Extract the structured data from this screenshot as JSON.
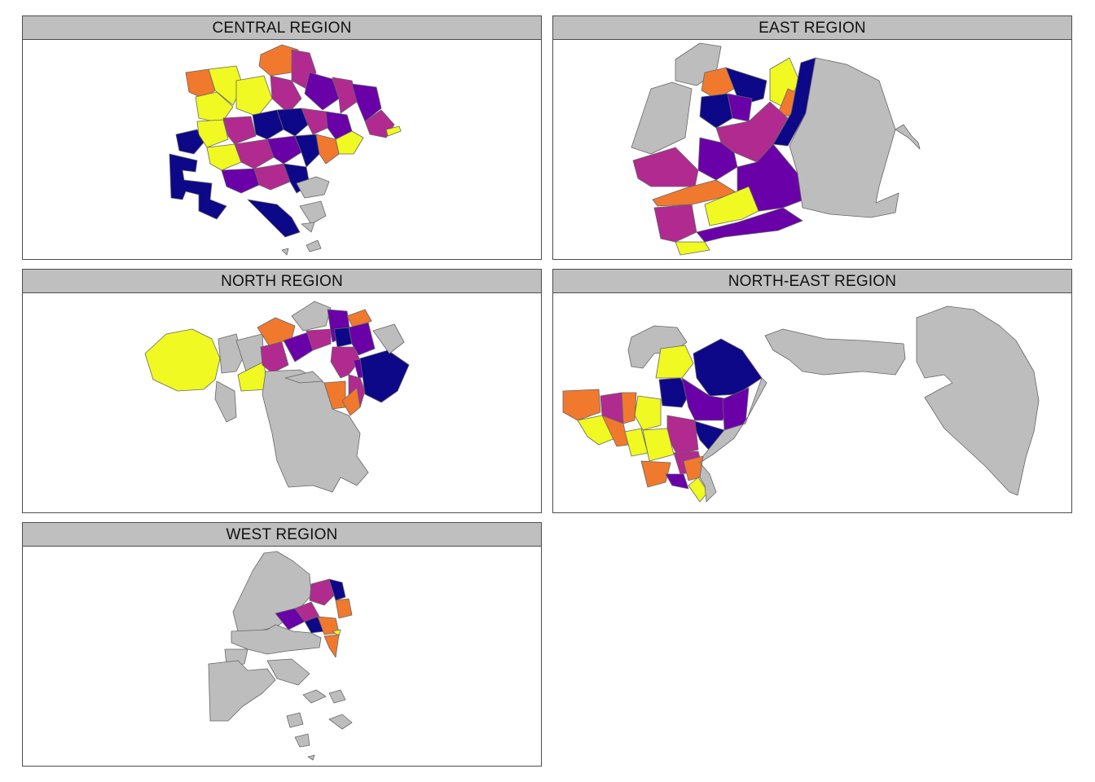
{
  "palette": {
    "no_data": "#bdbdbd",
    "c1": "#0d0887",
    "c2": "#6a00a8",
    "c3": "#b12a90",
    "c4": "#f0792e",
    "c5": "#f0f921"
  },
  "panels": [
    {
      "id": "central",
      "title": "CENTRAL REGION"
    },
    {
      "id": "east",
      "title": "EAST REGION"
    },
    {
      "id": "north",
      "title": "NORTH REGION"
    },
    {
      "id": "northeast",
      "title": "NORTH-EAST REGION"
    },
    {
      "id": "west",
      "title": "WEST REGION"
    }
  ]
}
